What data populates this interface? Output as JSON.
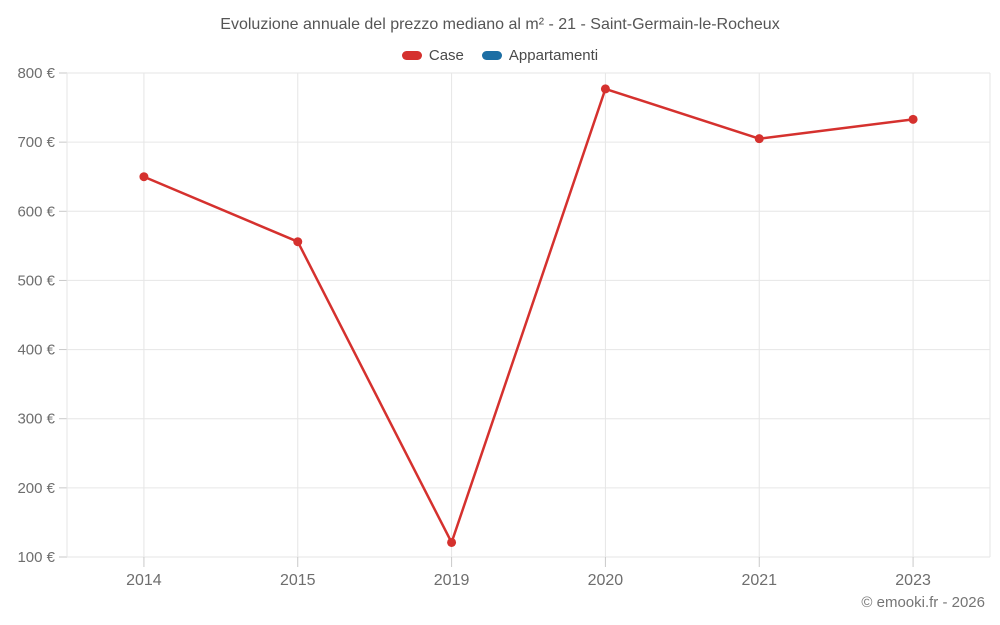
{
  "title": "Evoluzione annuale del prezzo mediano al m² - 21 - Saint-Germain-le-Rocheux",
  "footer": "© emooki.fr - 2026",
  "colors": {
    "case_red": "#d5312e",
    "appartamenti_blue": "#1c6ea4",
    "grid": "#e6e6e6",
    "tick": "#c9c9c9",
    "axis_text": "#6e6e6e",
    "title_text": "#555555",
    "legend_text": "#4a4a4a",
    "footer_text": "#757575"
  },
  "chart_data": {
    "type": "line",
    "title": "Evoluzione annuale del prezzo mediano al m² - 21 - Saint-Germain-le-Rocheux",
    "categories": [
      "2014",
      "2015",
      "2019",
      "2020",
      "2021",
      "2023"
    ],
    "series": [
      {
        "name": "Case",
        "color": "#d5312e",
        "values": [
          650,
          556,
          121,
          777,
          705,
          733
        ]
      },
      {
        "name": "Appartamenti",
        "color": "#1c6ea4",
        "values": []
      }
    ],
    "xlabel": "",
    "ylabel": "",
    "ylim": [
      100,
      800
    ],
    "yticks": [
      100,
      200,
      300,
      400,
      500,
      600,
      700,
      800
    ],
    "ytick_suffix": " €",
    "grid": true,
    "legend_position": "top-center",
    "marker": "circle"
  }
}
